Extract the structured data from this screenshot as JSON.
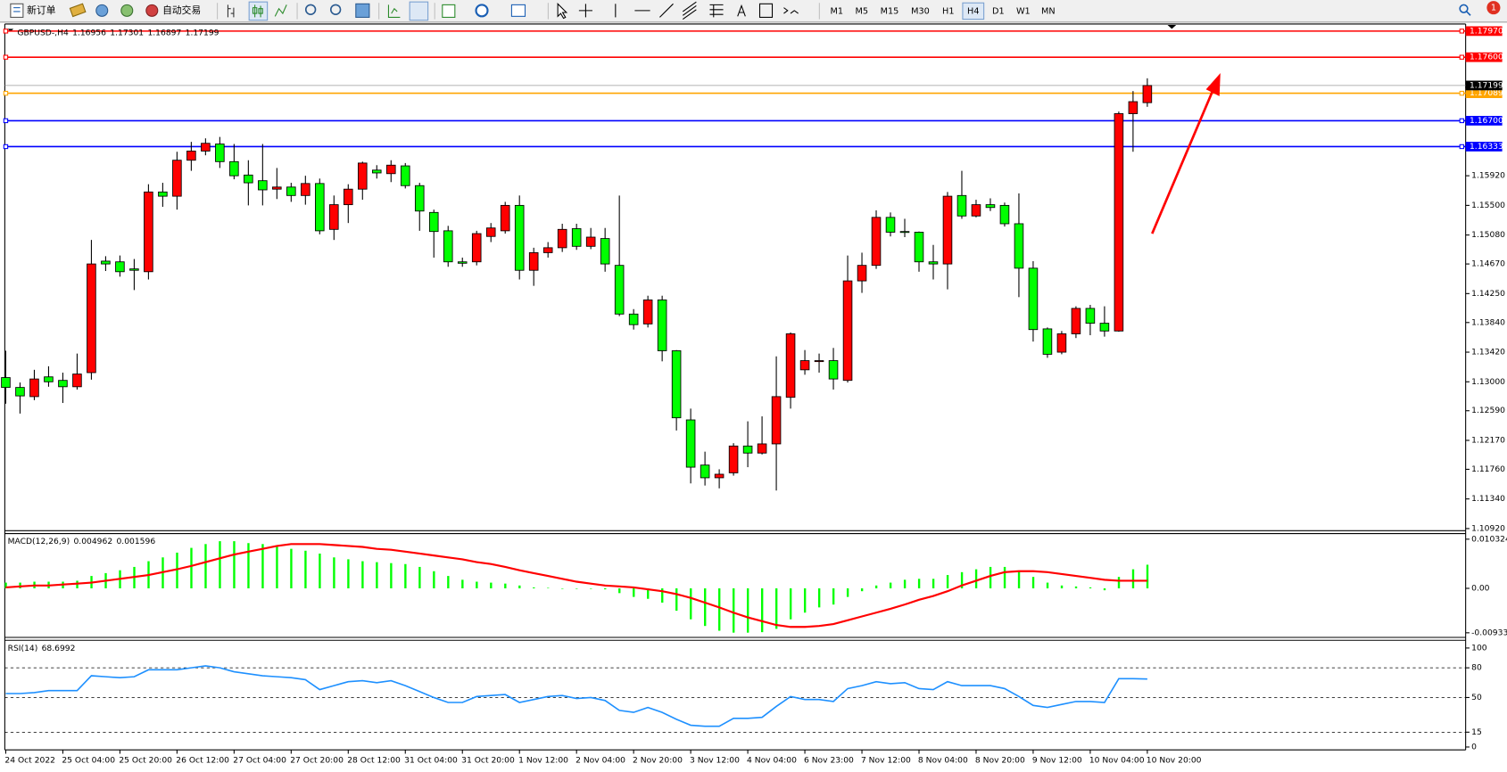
{
  "toolbar": {
    "new_order": "新订单",
    "auto_trading": "自动交易",
    "timeframes": [
      "M1",
      "M5",
      "M15",
      "M30",
      "H1",
      "H4",
      "D1",
      "W1",
      "MN"
    ],
    "active_timeframe": "H4",
    "notifications": 1
  },
  "chart_data": [
    {
      "type": "candlestick",
      "title": "GBPUSD-,H4",
      "categories": [
        "24 Oct 2022",
        null,
        null,
        null,
        "25 Oct 04:00",
        null,
        null,
        null,
        "25 Oct 20:00",
        null,
        null,
        null,
        "26 Oct 12:00",
        null,
        null,
        null,
        "27 Oct 04:00",
        null,
        null,
        null,
        "27 Oct 20:00",
        null,
        null,
        null,
        "28 Oct 12:00",
        null,
        null,
        null,
        "31 Oct 04:00",
        null,
        null,
        null,
        "31 Oct 20:00",
        null,
        null,
        null,
        "1 Nov 12:00",
        null,
        null,
        null,
        "2 Nov 04:00",
        null,
        null,
        null,
        "2 Nov 20:00",
        null,
        null,
        null,
        "3 Nov 12:00",
        null,
        null,
        null,
        "4 Nov 04:00",
        null,
        null,
        null,
        "6 Nov 23:00",
        null,
        null,
        null,
        "7 Nov 12:00",
        null,
        null,
        null,
        "8 Nov 04:00",
        null,
        null,
        null,
        "8 Nov 20:00",
        null,
        null,
        null,
        "9 Nov 12:00",
        null,
        null,
        null,
        "10 Nov 04:00",
        null,
        null,
        null,
        "10 Nov 20:00"
      ],
      "open": [
        1.1306,
        1.1292,
        1.1279,
        1.1307,
        1.1302,
        1.1293,
        1.1313,
        1.1471,
        1.147,
        1.146,
        1.1456,
        1.1569,
        1.1563,
        1.1614,
        1.1627,
        1.1637,
        1.1612,
        1.1593,
        1.1585,
        1.1573,
        1.1576,
        1.1564,
        1.1581,
        1.1516,
        1.1551,
        1.1573,
        1.16,
        1.1595,
        1.1606,
        1.1578,
        1.154,
        1.1514,
        1.147,
        1.147,
        1.1506,
        1.1514,
        1.155,
        1.1458,
        1.1483,
        1.149,
        1.1517,
        1.1492,
        1.1503,
        1.1465,
        1.1396,
        1.1382,
        1.1416,
        1.1344,
        1.1246,
        1.1182,
        1.1164,
        1.1171,
        1.1209,
        1.1199,
        1.1212,
        1.1278,
        1.1317,
        1.1329,
        1.133,
        1.1302,
        1.1443,
        1.1465,
        1.1533,
        1.1513,
        1.1512,
        1.147,
        1.1467,
        1.1564,
        1.1535,
        1.1551,
        1.155,
        1.1524,
        1.1461,
        1.1375,
        1.1342,
        1.1368,
        1.1404,
        1.1383,
        1.1372,
        1.168,
        1.16956
      ],
      "high": [
        1.1344,
        1.1299,
        1.1317,
        1.1322,
        1.1313,
        1.134,
        1.1501,
        1.1478,
        1.1479,
        1.1474,
        1.158,
        1.1582,
        1.1626,
        1.164,
        1.1645,
        1.1647,
        1.1637,
        1.1614,
        1.1637,
        1.1603,
        1.1582,
        1.1592,
        1.1588,
        1.1564,
        1.158,
        1.1612,
        1.1607,
        1.1614,
        1.161,
        1.1582,
        1.1544,
        1.1521,
        1.1476,
        1.1514,
        1.1525,
        1.1555,
        1.1564,
        1.149,
        1.1498,
        1.1524,
        1.1524,
        1.1518,
        1.1518,
        1.1564,
        1.1403,
        1.1422,
        1.1422,
        1.1345,
        1.1262,
        1.1201,
        1.1176,
        1.1213,
        1.1244,
        1.1251,
        1.1336,
        1.137,
        1.1345,
        1.134,
        1.1348,
        1.1479,
        1.1483,
        1.1543,
        1.154,
        1.1531,
        1.1513,
        1.1494,
        1.1569,
        1.1599,
        1.1558,
        1.156,
        1.1554,
        1.1567,
        1.1471,
        1.1377,
        1.1372,
        1.1407,
        1.1409,
        1.1407,
        1.1683,
        1.1712,
        1.17301
      ],
      "low": [
        1.1269,
        1.1255,
        1.1274,
        1.1293,
        1.127,
        1.1289,
        1.1303,
        1.1457,
        1.1449,
        1.143,
        1.1445,
        1.1548,
        1.1544,
        1.1599,
        1.1621,
        1.1603,
        1.1587,
        1.155,
        1.155,
        1.1559,
        1.1555,
        1.1551,
        1.1509,
        1.1501,
        1.1525,
        1.1558,
        1.1588,
        1.1583,
        1.1574,
        1.1514,
        1.1476,
        1.1463,
        1.1463,
        1.1465,
        1.1498,
        1.151,
        1.1445,
        1.1436,
        1.1476,
        1.1484,
        1.1487,
        1.1488,
        1.1456,
        1.1393,
        1.1374,
        1.1377,
        1.1329,
        1.1231,
        1.1156,
        1.1153,
        1.1149,
        1.1167,
        1.1179,
        1.1197,
        1.1146,
        1.1262,
        1.131,
        1.1313,
        1.1289,
        1.1299,
        1.1426,
        1.146,
        1.1506,
        1.1505,
        1.1456,
        1.1445,
        1.1431,
        1.1531,
        1.1533,
        1.1542,
        1.152,
        1.142,
        1.1357,
        1.1334,
        1.1339,
        1.1362,
        1.1366,
        1.1364,
        1.1371,
        1.1626,
        1.16897
      ],
      "close": [
        1.1292,
        1.128,
        1.1304,
        1.13,
        1.1293,
        1.1311,
        1.1467,
        1.1467,
        1.1456,
        1.1458,
        1.1569,
        1.1563,
        1.1614,
        1.1627,
        1.1638,
        1.1612,
        1.1592,
        1.1582,
        1.1572,
        1.1576,
        1.1564,
        1.1581,
        1.1514,
        1.1551,
        1.1573,
        1.161,
        1.1596,
        1.1607,
        1.1578,
        1.1542,
        1.1513,
        1.147,
        1.1468,
        1.151,
        1.1518,
        1.155,
        1.1458,
        1.1483,
        1.149,
        1.1516,
        1.1492,
        1.1505,
        1.1467,
        1.1396,
        1.1381,
        1.1416,
        1.1344,
        1.1249,
        1.1179,
        1.1164,
        1.1169,
        1.1209,
        1.1199,
        1.1212,
        1.1279,
        1.1368,
        1.133,
        1.133,
        1.1304,
        1.1443,
        1.1465,
        1.1533,
        1.1512,
        1.1512,
        1.147,
        1.1467,
        1.1563,
        1.1535,
        1.1551,
        1.1547,
        1.1524,
        1.1461,
        1.1374,
        1.1339,
        1.1368,
        1.1404,
        1.1383,
        1.1372,
        1.168,
        1.1697,
        1.17199
      ],
      "up_color": "#ff0000",
      "down_color": "#00ff00",
      "price_line_color": "#9a9a9a",
      "ylim": [
        1.1089,
        1.1807
      ],
      "yticks": [
        {
          "value": 1.1092,
          "label": "1.10920"
        },
        {
          "value": 1.1134,
          "label": "1.11340"
        },
        {
          "value": 1.1176,
          "label": "1.11760"
        },
        {
          "value": 1.1217,
          "label": "1.12170"
        },
        {
          "value": 1.1259,
          "label": "1.12590"
        },
        {
          "value": 1.13,
          "label": "1.13000"
        },
        {
          "value": 1.1342,
          "label": "1.13420"
        },
        {
          "value": 1.1384,
          "label": "1.13840"
        },
        {
          "value": 1.1425,
          "label": "1.14250"
        },
        {
          "value": 1.1467,
          "label": "1.14670"
        },
        {
          "value": 1.1508,
          "label": "1.15080"
        },
        {
          "value": 1.155,
          "label": "1.15500"
        },
        {
          "value": 1.1592,
          "label": "1.15920"
        }
      ],
      "hlines": [
        {
          "value": 1.1797,
          "label": "1.17970",
          "color": "#ff0000"
        },
        {
          "value": 1.176,
          "label": "1.17600",
          "color": "#ff0000"
        },
        {
          "value": 1.17089,
          "label": "1.17089",
          "color": "#ffa500"
        },
        {
          "value": 1.167,
          "label": "1.16700",
          "color": "#0000ff"
        },
        {
          "value": 1.16333,
          "label": "1.16333",
          "color": "#0000ff"
        }
      ]
    },
    {
      "type": "macd",
      "title": "MACD(12,26,9)",
      "histogram": {
        "color": "#00ff00",
        "values": [
          0.0012,
          0.0012,
          0.0014,
          0.0014,
          0.0014,
          0.0016,
          0.0026,
          0.0032,
          0.0038,
          0.0045,
          0.0057,
          0.0065,
          0.0075,
          0.0085,
          0.0093,
          0.0099,
          0.0099,
          0.0095,
          0.0093,
          0.0089,
          0.0083,
          0.0079,
          0.0073,
          0.0065,
          0.0061,
          0.0057,
          0.0055,
          0.0053,
          0.0051,
          0.0045,
          0.0036,
          0.0026,
          0.0018,
          0.0014,
          0.0012,
          0.001,
          0.0006,
          0.0002,
          0.0001,
          0,
          -0.0001,
          -0.0001,
          -0.0002,
          -0.001,
          -0.0018,
          -0.0022,
          -0.003,
          -0.0047,
          -0.0065,
          -0.0079,
          -0.0089,
          -0.0093,
          -0.0093,
          -0.0092,
          -0.0085,
          -0.0065,
          -0.0051,
          -0.004,
          -0.0034,
          -0.0018,
          -0.0006,
          0.0006,
          0.0012,
          0.0018,
          0.002,
          0.002,
          0.0028,
          0.0034,
          0.004,
          0.0045,
          0.0045,
          0.0036,
          0.0024,
          0.0012,
          0.0006,
          0.0004,
          0.0002,
          -0.0004,
          0.0024,
          0.004,
          0.004962
        ]
      },
      "signal": {
        "color": "#ff0000",
        "values": [
          0.0002,
          0.0004,
          0.0006,
          0.0006,
          0.0008,
          0.001,
          0.0012,
          0.0016,
          0.002,
          0.0024,
          0.0028,
          0.0034,
          0.004,
          0.0047,
          0.0055,
          0.0063,
          0.0071,
          0.0077,
          0.0083,
          0.0089,
          0.0093,
          0.0093,
          0.0093,
          0.0091,
          0.0089,
          0.0087,
          0.0083,
          0.0081,
          0.0077,
          0.0073,
          0.0069,
          0.0065,
          0.0061,
          0.0055,
          0.0051,
          0.0045,
          0.0038,
          0.0032,
          0.0026,
          0.002,
          0.0014,
          0.001,
          0.0006,
          0.0004,
          0.0002,
          -0.0002,
          -0.0006,
          -0.0012,
          -0.002,
          -0.003,
          -0.004,
          -0.0051,
          -0.0061,
          -0.0069,
          -0.0077,
          -0.0081,
          -0.0081,
          -0.0079,
          -0.0075,
          -0.0067,
          -0.0059,
          -0.0051,
          -0.0043,
          -0.0034,
          -0.0024,
          -0.0016,
          -0.0006,
          0.0006,
          0.0016,
          0.0026,
          0.0034,
          0.0036,
          0.0036,
          0.0034,
          0.003,
          0.0026,
          0.0022,
          0.0018,
          0.0016,
          0.0016,
          0.001596
        ]
      },
      "ylim": [
        -0.0103,
        0.0115
      ],
      "yticks": [
        0.010324,
        {
          "value": 0,
          "label": "0.00"
        },
        -0.009332
      ]
    },
    {
      "type": "line",
      "title": "RSI(14)",
      "color": "#1e90ff",
      "values": [
        54,
        54,
        55,
        57,
        57,
        57,
        72,
        71,
        70,
        71,
        78,
        78,
        78,
        80,
        82,
        80,
        76,
        74,
        72,
        71,
        70,
        68,
        58,
        62,
        66,
        67,
        65,
        67,
        62,
        56,
        50,
        45,
        45,
        51,
        52,
        53,
        45,
        48,
        51,
        52,
        49,
        50,
        47,
        37,
        35,
        40,
        35,
        28,
        22,
        21,
        21,
        29,
        29,
        30,
        41,
        51,
        48,
        48,
        46,
        59,
        62,
        66,
        64,
        65,
        59,
        58,
        66,
        62,
        62,
        62,
        59,
        51,
        42,
        40,
        43,
        46,
        46,
        45,
        69,
        69,
        68.6992
      ],
      "ylim": [
        -2.9,
        107.8
      ],
      "yticks": [
        100,
        80,
        50,
        15,
        0
      ]
    }
  ]
}
